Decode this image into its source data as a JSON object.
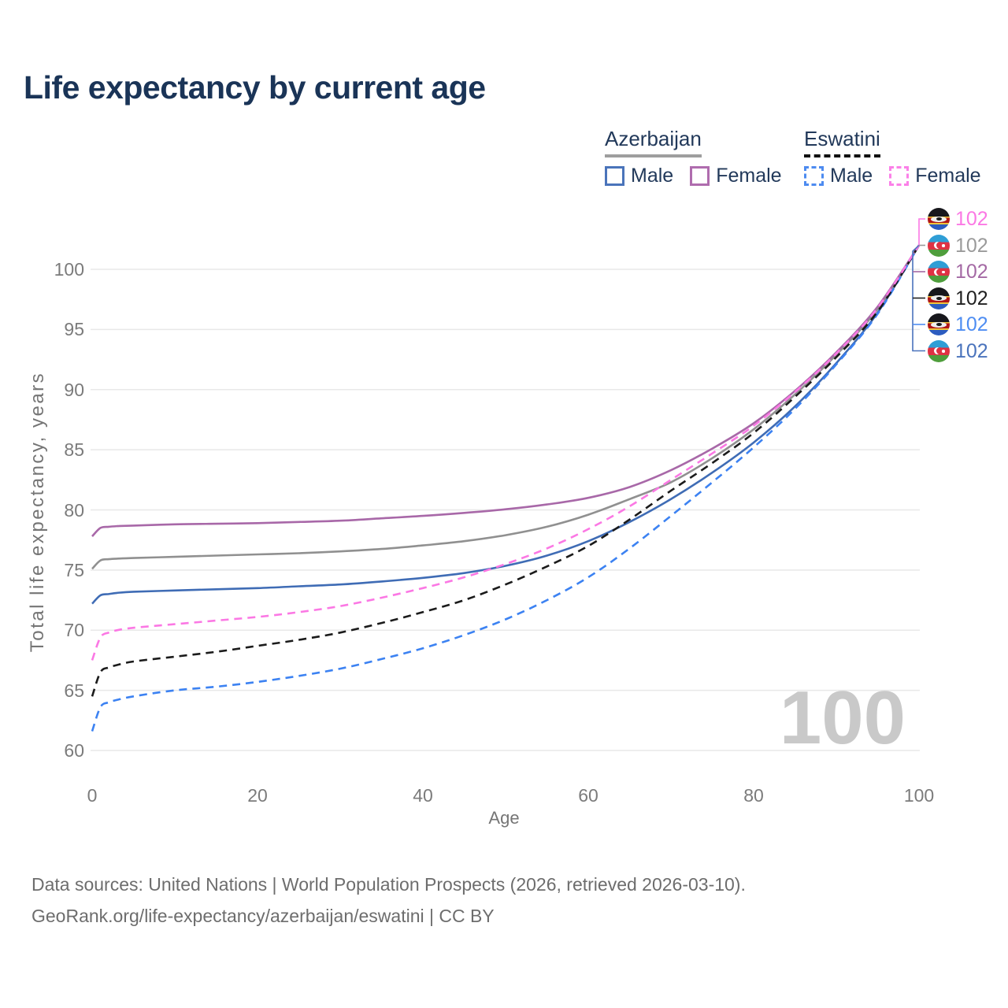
{
  "header": {
    "title": "Life expectancy by current age"
  },
  "legend": {
    "groups": [
      {
        "label": "Azerbaijan",
        "line_style": "solid",
        "underline_color": "#9e9e9e",
        "items": [
          {
            "label": "Male",
            "color": "#4a74ba"
          },
          {
            "label": "Female",
            "color": "#af6cae"
          }
        ]
      },
      {
        "label": "Eswatini",
        "line_style": "dashed",
        "underline_color": "#111111",
        "items": [
          {
            "label": "Male",
            "color": "#4d8bf0"
          },
          {
            "label": "Female",
            "color": "#fb80e8"
          }
        ]
      }
    ]
  },
  "chart_data": {
    "type": "line",
    "title": "Life expectancy by current age",
    "xlabel": "Age",
    "ylabel": "Total life expectancy, years",
    "xlim": [
      0,
      100
    ],
    "ylim": [
      60,
      103
    ],
    "x_ticks": [
      0,
      20,
      40,
      60,
      80,
      100
    ],
    "y_ticks": [
      60,
      65,
      70,
      75,
      80,
      85,
      90,
      95,
      100
    ],
    "grid": "horizontal",
    "legend_position": "top-right",
    "watermark": "100",
    "ages": [
      0,
      1,
      2,
      3,
      5,
      10,
      15,
      20,
      25,
      30,
      35,
      40,
      45,
      50,
      55,
      60,
      65,
      70,
      75,
      80,
      85,
      90,
      95,
      100
    ],
    "series": [
      {
        "name": "Azerbaijan Male",
        "country": "Azerbaijan",
        "sex": "Male",
        "color": "#3f6cb5",
        "dash": false,
        "values": [
          72.2,
          72.9,
          73.0,
          73.1,
          73.2,
          73.3,
          73.4,
          73.5,
          73.65,
          73.8,
          74.05,
          74.35,
          74.75,
          75.35,
          76.2,
          77.4,
          79.0,
          80.9,
          83.1,
          85.6,
          88.6,
          92.2,
          96.4,
          102
        ]
      },
      {
        "name": "Azerbaijan All",
        "country": "Azerbaijan",
        "sex": "All",
        "color": "#909090",
        "dash": false,
        "values": [
          75.1,
          75.8,
          75.9,
          75.95,
          76.0,
          76.1,
          76.2,
          76.3,
          76.4,
          76.55,
          76.75,
          77.05,
          77.4,
          77.9,
          78.6,
          79.6,
          80.9,
          82.3,
          84.3,
          86.7,
          89.6,
          92.9,
          96.7,
          102
        ]
      },
      {
        "name": "Azerbaijan Female",
        "country": "Azerbaijan",
        "sex": "Female",
        "color": "#a868a8",
        "dash": false,
        "values": [
          77.8,
          78.5,
          78.6,
          78.65,
          78.7,
          78.8,
          78.85,
          78.9,
          79.0,
          79.1,
          79.3,
          79.5,
          79.75,
          80.05,
          80.45,
          81.0,
          81.9,
          83.3,
          85.1,
          87.2,
          89.9,
          93.1,
          96.9,
          102
        ]
      },
      {
        "name": "Eswatini Male",
        "country": "Eswatini",
        "sex": "Male",
        "color": "#3c82f2",
        "dash": true,
        "values": [
          61.6,
          63.6,
          64.0,
          64.2,
          64.5,
          65.0,
          65.3,
          65.7,
          66.2,
          66.8,
          67.6,
          68.5,
          69.6,
          70.9,
          72.5,
          74.4,
          76.8,
          79.5,
          82.3,
          85.2,
          88.4,
          92.1,
          96.3,
          102
        ]
      },
      {
        "name": "Eswatini All",
        "country": "Eswatini",
        "sex": "All",
        "color": "#1b1b1b",
        "dash": true,
        "values": [
          64.5,
          66.5,
          66.9,
          67.1,
          67.4,
          67.8,
          68.2,
          68.7,
          69.2,
          69.8,
          70.6,
          71.5,
          72.5,
          73.8,
          75.3,
          77.0,
          79.2,
          81.6,
          83.9,
          86.4,
          89.4,
          92.7,
          96.5,
          102
        ]
      },
      {
        "name": "Eswatini Female",
        "country": "Eswatini",
        "sex": "Female",
        "color": "#fb78e4",
        "dash": true,
        "values": [
          67.5,
          69.4,
          69.8,
          70.0,
          70.2,
          70.5,
          70.8,
          71.1,
          71.5,
          72.0,
          72.7,
          73.5,
          74.4,
          75.5,
          76.8,
          78.4,
          80.3,
          82.5,
          84.7,
          87.0,
          89.8,
          93.0,
          96.8,
          102
        ]
      }
    ],
    "end_labels": [
      {
        "flag": "eswatini",
        "value": "102",
        "color": "#fb78e4"
      },
      {
        "flag": "azerbaijan",
        "value": "102",
        "color": "#9a9a9a"
      },
      {
        "flag": "azerbaijan",
        "value": "102",
        "color": "#a469a4"
      },
      {
        "flag": "eswatini",
        "value": "102",
        "color": "#1f1f1f"
      },
      {
        "flag": "eswatini",
        "value": "102",
        "color": "#4e8df2"
      },
      {
        "flag": "azerbaijan",
        "value": "102",
        "color": "#4a73bc"
      }
    ]
  },
  "footer": {
    "line1": "Data sources: United Nations | World Population Prospects (2026, retrieved 2026-03-10).",
    "line2": "GeoRank.org/life-expectancy/azerbaijan/eswatini | CC BY"
  }
}
